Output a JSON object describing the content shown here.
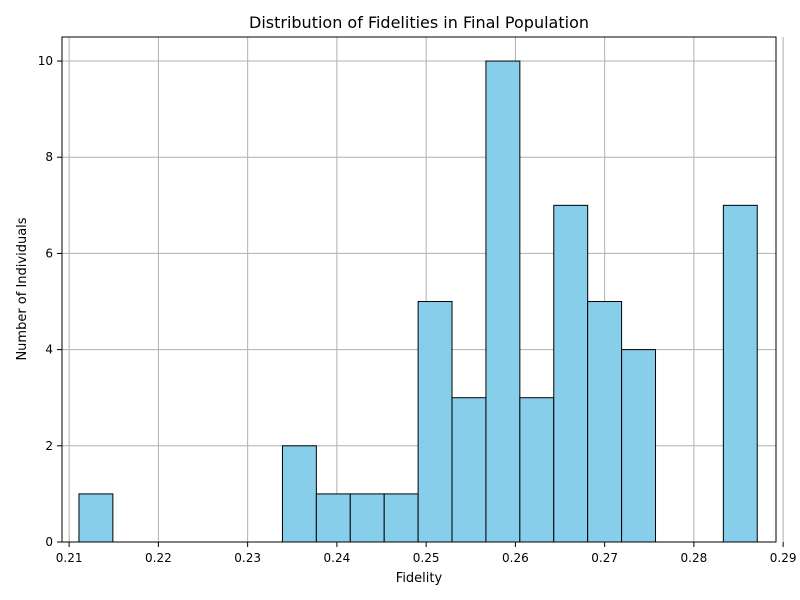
{
  "chart_data": {
    "type": "bar",
    "title": "Distribution of Fidelities in Final Population",
    "xlabel": "Fidelity",
    "ylabel": "Number of Individuals",
    "xlim": [
      0.2092,
      0.2892
    ],
    "ylim": [
      0,
      10.5
    ],
    "xticks": [
      0.21,
      0.22,
      0.23,
      0.24,
      0.25,
      0.26,
      0.27,
      0.28,
      0.29
    ],
    "xtick_labels": [
      "0.21",
      "0.22",
      "0.23",
      "0.24",
      "0.25",
      "0.26",
      "0.27",
      "0.28",
      "0.29"
    ],
    "yticks": [
      0,
      2,
      4,
      6,
      8,
      10
    ],
    "ytick_labels": [
      "0",
      "2",
      "4",
      "6",
      "8",
      "10"
    ],
    "grid": true,
    "bar_color": "#87ceeb",
    "edge_color": "#000000",
    "bins": [
      {
        "x0": 0.2111,
        "x1": 0.2149,
        "count": 1
      },
      {
        "x0": 0.2149,
        "x1": 0.2187,
        "count": 0
      },
      {
        "x0": 0.2187,
        "x1": 0.2225,
        "count": 0
      },
      {
        "x0": 0.2225,
        "x1": 0.2263,
        "count": 0
      },
      {
        "x0": 0.2263,
        "x1": 0.2301,
        "count": 0
      },
      {
        "x0": 0.2301,
        "x1": 0.2339,
        "count": 0
      },
      {
        "x0": 0.2339,
        "x1": 0.2377,
        "count": 2
      },
      {
        "x0": 0.2377,
        "x1": 0.2415,
        "count": 1
      },
      {
        "x0": 0.2415,
        "x1": 0.2453,
        "count": 1
      },
      {
        "x0": 0.2453,
        "x1": 0.2491,
        "count": 1
      },
      {
        "x0": 0.2491,
        "x1": 0.2529,
        "count": 5
      },
      {
        "x0": 0.2529,
        "x1": 0.2567,
        "count": 3
      },
      {
        "x0": 0.2567,
        "x1": 0.2605,
        "count": 10
      },
      {
        "x0": 0.2605,
        "x1": 0.2643,
        "count": 3
      },
      {
        "x0": 0.2643,
        "x1": 0.2681,
        "count": 7
      },
      {
        "x0": 0.2681,
        "x1": 0.2719,
        "count": 5
      },
      {
        "x0": 0.2719,
        "x1": 0.2757,
        "count": 4
      },
      {
        "x0": 0.2757,
        "x1": 0.2795,
        "count": 0
      },
      {
        "x0": 0.2795,
        "x1": 0.2833,
        "count": 0
      },
      {
        "x0": 0.2833,
        "x1": 0.2871,
        "count": 7
      }
    ]
  }
}
